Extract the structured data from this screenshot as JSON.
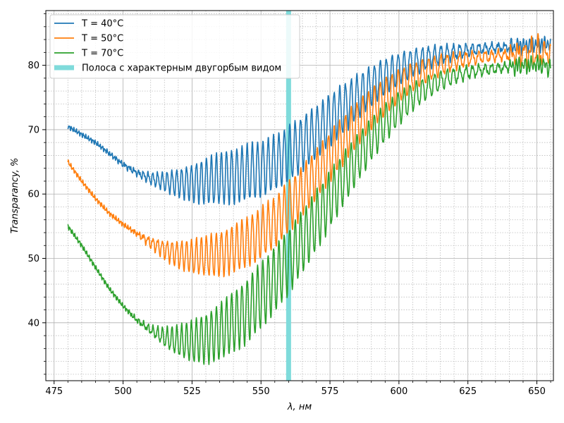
{
  "chart_data": {
    "type": "line",
    "title": "",
    "xlabel": "λ,  нм",
    "ylabel": "Transparancy,  %",
    "xlim": [
      472,
      656
    ],
    "ylim": [
      31,
      88.5
    ],
    "xticks": [
      475,
      500,
      525,
      550,
      575,
      600,
      625,
      650
    ],
    "yticks": [
      40,
      50,
      60,
      70,
      80
    ],
    "grid": true,
    "minor_grid": true,
    "legend_position": "top-left",
    "band": {
      "name": "Полоса с характерным двугорбым видом",
      "x": 560,
      "color": "#7fdbdb"
    },
    "series": [
      {
        "name": "T = 40°C",
        "color": "#1f77b4",
        "envelope_upper": [
          [
            480,
            70.5
          ],
          [
            490,
            68.0
          ],
          [
            500,
            64.8
          ],
          [
            505,
            63.6
          ],
          [
            510,
            63.2
          ],
          [
            515,
            63.3
          ],
          [
            520,
            63.8
          ],
          [
            525,
            64.6
          ],
          [
            530,
            65.5
          ],
          [
            535,
            66.3
          ],
          [
            540,
            67.0
          ],
          [
            545,
            67.6
          ],
          [
            550,
            68.2
          ],
          [
            555,
            69.0
          ],
          [
            560,
            70.5
          ],
          [
            565,
            72.0
          ],
          [
            570,
            73.6
          ],
          [
            575,
            75.5
          ],
          [
            580,
            77.0
          ],
          [
            585,
            78.5
          ],
          [
            590,
            79.8
          ],
          [
            595,
            81.0
          ],
          [
            600,
            81.8
          ],
          [
            605,
            82.4
          ],
          [
            610,
            82.8
          ],
          [
            615,
            83.0
          ],
          [
            620,
            83.1
          ],
          [
            625,
            83.2
          ],
          [
            630,
            83.3
          ],
          [
            640,
            83.3
          ],
          [
            650,
            83.5
          ],
          [
            655,
            83.5
          ]
        ],
        "envelope_lower": [
          [
            480,
            70.5
          ],
          [
            490,
            68.0
          ],
          [
            500,
            64.4
          ],
          [
            505,
            63.0
          ],
          [
            510,
            61.6
          ],
          [
            515,
            60.5
          ],
          [
            520,
            59.6
          ],
          [
            525,
            58.9
          ],
          [
            530,
            58.5
          ],
          [
            535,
            58.4
          ],
          [
            540,
            58.6
          ],
          [
            545,
            59.0
          ],
          [
            550,
            59.6
          ],
          [
            555,
            60.6
          ],
          [
            560,
            62.0
          ],
          [
            565,
            63.7
          ],
          [
            570,
            65.5
          ],
          [
            575,
            67.5
          ],
          [
            580,
            69.6
          ],
          [
            585,
            71.7
          ],
          [
            590,
            73.7
          ],
          [
            595,
            75.5
          ],
          [
            600,
            77.0
          ],
          [
            605,
            78.3
          ],
          [
            610,
            79.4
          ],
          [
            615,
            80.3
          ],
          [
            620,
            81.0
          ],
          [
            625,
            81.5
          ],
          [
            630,
            81.9
          ],
          [
            640,
            82.4
          ],
          [
            650,
            83.0
          ],
          [
            655,
            83.1
          ]
        ]
      },
      {
        "name": "T = 50°C",
        "color": "#ff7f0e",
        "envelope_upper": [
          [
            480,
            65.0
          ],
          [
            485,
            62.0
          ],
          [
            490,
            59.3
          ],
          [
            495,
            57.0
          ],
          [
            500,
            55.3
          ],
          [
            505,
            54.0
          ],
          [
            510,
            53.2
          ],
          [
            515,
            52.7
          ],
          [
            520,
            52.6
          ],
          [
            525,
            52.8
          ],
          [
            530,
            53.3
          ],
          [
            535,
            54.1
          ],
          [
            540,
            55.1
          ],
          [
            545,
            56.3
          ],
          [
            550,
            57.8
          ],
          [
            555,
            59.5
          ],
          [
            560,
            62.0
          ],
          [
            565,
            64.3
          ],
          [
            570,
            66.9
          ],
          [
            575,
            69.6
          ],
          [
            580,
            72.1
          ],
          [
            585,
            74.4
          ],
          [
            590,
            76.4
          ],
          [
            595,
            78.0
          ],
          [
            600,
            79.3
          ],
          [
            605,
            80.3
          ],
          [
            610,
            81.0
          ],
          [
            615,
            81.5
          ],
          [
            620,
            81.8
          ],
          [
            625,
            82.0
          ],
          [
            630,
            82.1
          ],
          [
            640,
            82.3
          ],
          [
            650,
            84.0
          ],
          [
            655,
            82.5
          ]
        ],
        "envelope_lower": [
          [
            480,
            65.0
          ],
          [
            485,
            62.0
          ],
          [
            490,
            59.3
          ],
          [
            495,
            57.0
          ],
          [
            500,
            55.3
          ],
          [
            505,
            53.7
          ],
          [
            510,
            51.7
          ],
          [
            515,
            50.0
          ],
          [
            520,
            48.6
          ],
          [
            525,
            47.7
          ],
          [
            530,
            47.3
          ],
          [
            535,
            47.3
          ],
          [
            540,
            47.8
          ],
          [
            545,
            48.7
          ],
          [
            550,
            50.0
          ],
          [
            555,
            51.8
          ],
          [
            560,
            54.0
          ],
          [
            565,
            56.5
          ],
          [
            570,
            59.2
          ],
          [
            575,
            62.0
          ],
          [
            580,
            64.8
          ],
          [
            585,
            67.5
          ],
          [
            590,
            70.0
          ],
          [
            595,
            72.3
          ],
          [
            600,
            74.3
          ],
          [
            605,
            76.0
          ],
          [
            610,
            77.4
          ],
          [
            615,
            78.5
          ],
          [
            620,
            79.4
          ],
          [
            625,
            80.0
          ],
          [
            630,
            80.5
          ],
          [
            640,
            81.0
          ],
          [
            650,
            80.0
          ],
          [
            655,
            81.0
          ]
        ]
      },
      {
        "name": "T = 70°C",
        "color": "#2ca02c",
        "envelope_upper": [
          [
            480,
            55.0
          ],
          [
            485,
            52.0
          ],
          [
            490,
            48.6
          ],
          [
            495,
            45.3
          ],
          [
            500,
            42.6
          ],
          [
            505,
            40.6
          ],
          [
            510,
            39.4
          ],
          [
            515,
            39.1
          ],
          [
            520,
            39.4
          ],
          [
            525,
            40.2
          ],
          [
            530,
            41.4
          ],
          [
            535,
            42.9
          ],
          [
            540,
            44.7
          ],
          [
            545,
            46.8
          ],
          [
            550,
            49.3
          ],
          [
            555,
            51.8
          ],
          [
            560,
            54.5
          ],
          [
            565,
            57.4
          ],
          [
            570,
            60.5
          ],
          [
            575,
            63.5
          ],
          [
            580,
            66.5
          ],
          [
            585,
            69.3
          ],
          [
            590,
            71.8
          ],
          [
            595,
            74.0
          ],
          [
            600,
            75.8
          ],
          [
            605,
            77.2
          ],
          [
            610,
            78.2
          ],
          [
            615,
            79.0
          ],
          [
            620,
            79.5
          ],
          [
            625,
            79.8
          ],
          [
            630,
            80.0
          ],
          [
            640,
            80.3
          ],
          [
            650,
            80.5
          ],
          [
            655,
            80.5
          ]
        ],
        "envelope_lower": [
          [
            480,
            55.0
          ],
          [
            485,
            52.0
          ],
          [
            490,
            48.6
          ],
          [
            495,
            45.3
          ],
          [
            500,
            42.6
          ],
          [
            505,
            40.2
          ],
          [
            510,
            38.3
          ],
          [
            515,
            36.3
          ],
          [
            520,
            34.8
          ],
          [
            525,
            33.9
          ],
          [
            530,
            33.8
          ],
          [
            535,
            34.3
          ],
          [
            540,
            35.4
          ],
          [
            545,
            37.0
          ],
          [
            550,
            39.1
          ],
          [
            555,
            41.7
          ],
          [
            560,
            44.6
          ],
          [
            565,
            47.8
          ],
          [
            570,
            51.2
          ],
          [
            575,
            54.8
          ],
          [
            580,
            58.4
          ],
          [
            585,
            61.9
          ],
          [
            590,
            65.2
          ],
          [
            595,
            68.2
          ],
          [
            600,
            70.8
          ],
          [
            605,
            73.0
          ],
          [
            610,
            74.8
          ],
          [
            615,
            76.2
          ],
          [
            620,
            77.2
          ],
          [
            625,
            78.0
          ],
          [
            630,
            78.5
          ],
          [
            640,
            79.2
          ],
          [
            650,
            79.8
          ],
          [
            655,
            79.0
          ]
        ]
      }
    ]
  }
}
